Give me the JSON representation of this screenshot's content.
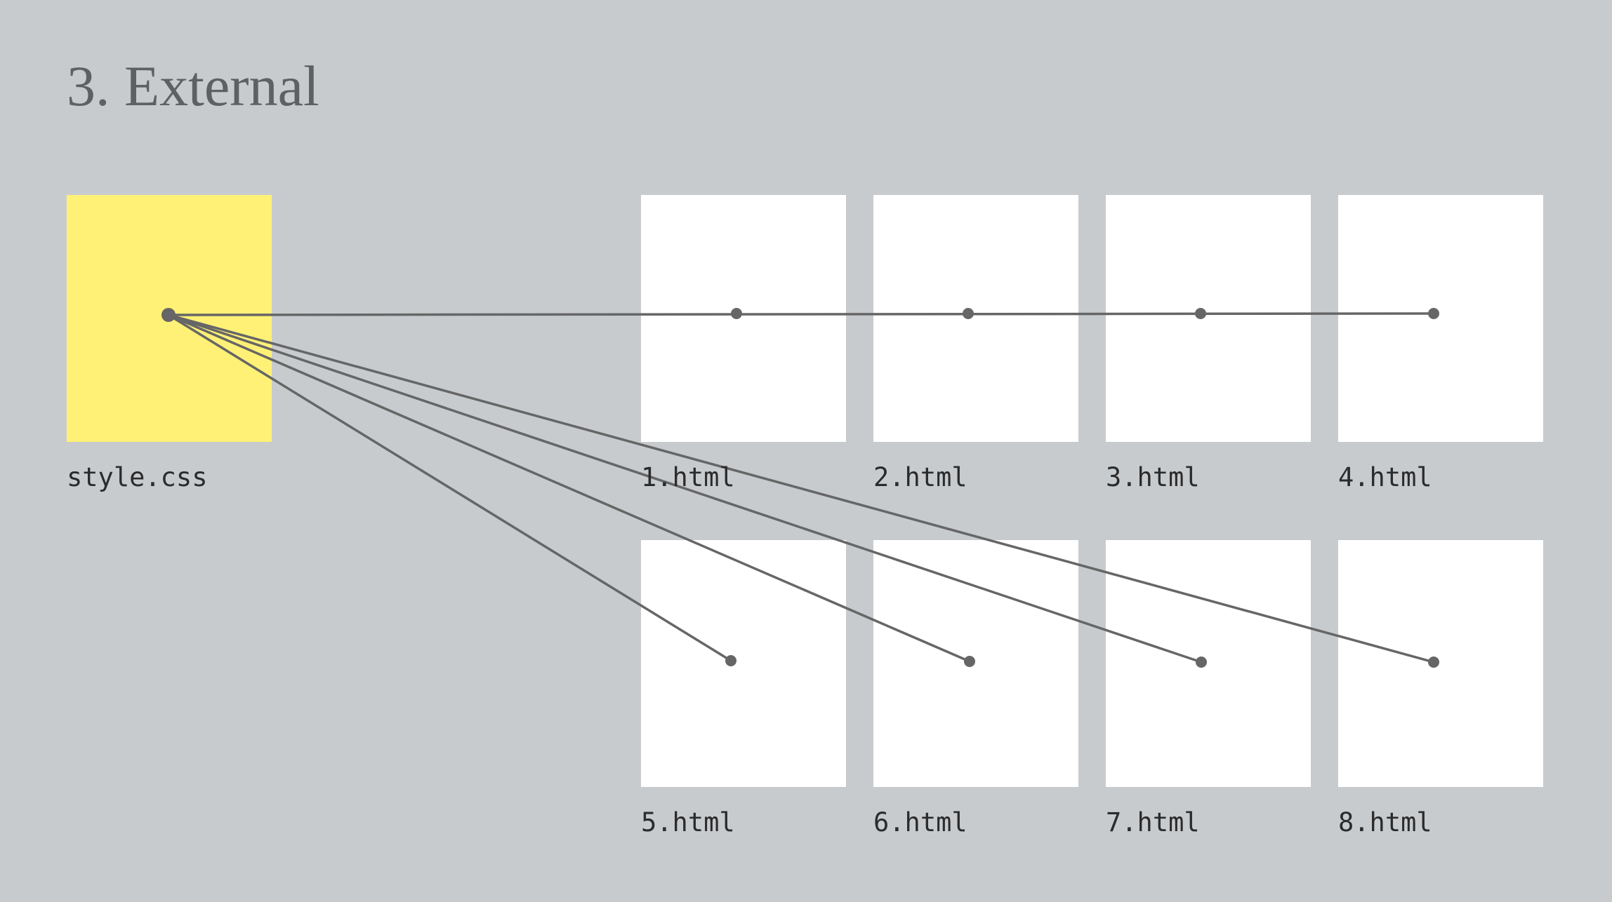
{
  "title": "3. External",
  "source": {
    "label": "style.css",
    "color": "#fff176"
  },
  "pages": [
    {
      "label": "1.html"
    },
    {
      "label": "2.html"
    },
    {
      "label": "3.html"
    },
    {
      "label": "4.html"
    },
    {
      "label": "5.html"
    },
    {
      "label": "6.html"
    },
    {
      "label": "7.html"
    },
    {
      "label": "8.html"
    }
  ],
  "colors": {
    "background": "#c8cbce",
    "page": "#ffffff",
    "line": "#666666"
  }
}
